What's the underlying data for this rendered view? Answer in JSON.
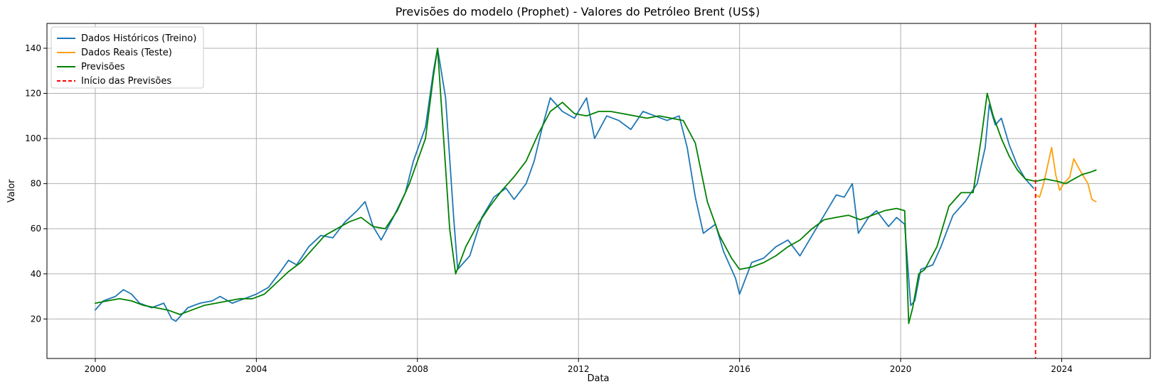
{
  "chart_data": {
    "type": "line",
    "title": "Previsões do modelo (Prophet) - Valores do Petróleo Brent (US$)",
    "xlabel": "Data",
    "ylabel": "Valor",
    "xlim": [
      1998.8,
      2026.2
    ],
    "ylim": [
      2.5,
      151
    ],
    "grid": true,
    "legend_position": "top-left",
    "x_ticks": [
      2000,
      2004,
      2008,
      2012,
      2016,
      2020,
      2024
    ],
    "y_ticks": [
      20,
      40,
      60,
      80,
      100,
      120,
      140
    ],
    "forecast_start": 2023.35,
    "series": [
      {
        "name": "Dados Históricos (Treino)",
        "color": "#1f77b4",
        "x": [
          2000.0,
          2000.2,
          2000.5,
          2000.7,
          2000.9,
          2001.1,
          2001.4,
          2001.7,
          2001.9,
          2002.0,
          2002.3,
          2002.6,
          2002.9,
          2003.1,
          2003.4,
          2003.7,
          2004.0,
          2004.3,
          2004.6,
          2004.8,
          2005.0,
          2005.3,
          2005.6,
          2005.9,
          2006.2,
          2006.5,
          2006.7,
          2006.9,
          2007.1,
          2007.4,
          2007.7,
          2007.9,
          2008.2,
          2008.4,
          2008.5,
          2008.7,
          2008.9,
          2009.0,
          2009.3,
          2009.6,
          2009.9,
          2010.2,
          2010.4,
          2010.7,
          2010.9,
          2011.1,
          2011.3,
          2011.6,
          2011.9,
          2012.2,
          2012.4,
          2012.7,
          2013.0,
          2013.3,
          2013.6,
          2013.9,
          2014.2,
          2014.5,
          2014.7,
          2014.9,
          2015.1,
          2015.4,
          2015.6,
          2015.9,
          2016.0,
          2016.3,
          2016.6,
          2016.9,
          2017.2,
          2017.5,
          2017.8,
          2018.1,
          2018.4,
          2018.6,
          2018.8,
          2018.95,
          2019.2,
          2019.4,
          2019.7,
          2019.9,
          2020.1,
          2020.25,
          2020.35,
          2020.5,
          2020.8,
          2021.0,
          2021.3,
          2021.6,
          2021.9,
          2022.1,
          2022.2,
          2022.35,
          2022.5,
          2022.7,
          2022.9,
          2023.1,
          2023.3
        ],
        "y": [
          24,
          28,
          30,
          33,
          31,
          27,
          25,
          27,
          20,
          19,
          25,
          27,
          28,
          30,
          27,
          29,
          31,
          34,
          41,
          46,
          44,
          52,
          57,
          56,
          63,
          68,
          72,
          61,
          55,
          65,
          76,
          90,
          105,
          130,
          140,
          118,
          65,
          42,
          48,
          65,
          74,
          78,
          73,
          80,
          90,
          105,
          118,
          112,
          109,
          118,
          100,
          110,
          108,
          104,
          112,
          110,
          108,
          110,
          96,
          74,
          58,
          62,
          50,
          38,
          31,
          45,
          47,
          52,
          55,
          48,
          57,
          66,
          75,
          74,
          80,
          58,
          65,
          68,
          61,
          65,
          62,
          26,
          28,
          42,
          44,
          52,
          66,
          72,
          80,
          96,
          115,
          106,
          109,
          97,
          88,
          82,
          78
        ]
      },
      {
        "name": "Dados Reais (Teste)",
        "color": "#ff9f0a",
        "x": [
          2023.35,
          2023.45,
          2023.55,
          2023.65,
          2023.75,
          2023.85,
          2023.95,
          2024.05,
          2024.2,
          2024.3,
          2024.45,
          2024.55,
          2024.65,
          2024.75,
          2024.85
        ],
        "y": [
          75,
          74,
          80,
          88,
          96,
          84,
          77,
          80,
          83,
          91,
          86,
          83,
          80,
          73,
          72
        ]
      },
      {
        "name": "Previsões",
        "color": "#008000",
        "x": [
          2000.0,
          2000.3,
          2000.6,
          2000.9,
          2001.2,
          2001.5,
          2001.8,
          2002.1,
          2002.4,
          2002.7,
          2003.0,
          2003.3,
          2003.6,
          2003.9,
          2004.2,
          2004.5,
          2004.8,
          2005.1,
          2005.4,
          2005.7,
          2006.0,
          2006.3,
          2006.6,
          2006.9,
          2007.2,
          2007.5,
          2007.8,
          2008.0,
          2008.2,
          2008.4,
          2008.5,
          2008.65,
          2008.8,
          2008.95,
          2009.2,
          2009.5,
          2009.8,
          2010.1,
          2010.4,
          2010.7,
          2011.0,
          2011.3,
          2011.6,
          2011.9,
          2012.2,
          2012.5,
          2012.8,
          2013.1,
          2013.4,
          2013.7,
          2014.0,
          2014.3,
          2014.6,
          2014.9,
          2015.2,
          2015.5,
          2015.8,
          2016.0,
          2016.3,
          2016.6,
          2016.9,
          2017.2,
          2017.5,
          2017.8,
          2018.1,
          2018.4,
          2018.7,
          2019.0,
          2019.3,
          2019.6,
          2019.9,
          2020.1,
          2020.2,
          2020.3,
          2020.45,
          2020.6,
          2020.9,
          2021.2,
          2021.5,
          2021.8,
          2022.0,
          2022.15,
          2022.3,
          2022.5,
          2022.7,
          2022.9,
          2023.1,
          2023.35,
          2023.6,
          2023.9,
          2024.1,
          2024.3,
          2024.5,
          2024.7,
          2024.85
        ],
        "y": [
          27,
          28,
          29,
          28,
          26,
          25,
          24,
          22,
          24,
          26,
          27,
          28,
          29,
          29,
          31,
          36,
          41,
          45,
          51,
          57,
          60,
          63,
          65,
          61,
          60,
          68,
          80,
          90,
          100,
          128,
          140,
          100,
          60,
          40,
          52,
          62,
          70,
          77,
          83,
          90,
          102,
          112,
          116,
          111,
          110,
          112,
          112,
          111,
          110,
          109,
          110,
          109,
          108,
          98,
          72,
          57,
          47,
          42,
          43,
          45,
          48,
          52,
          55,
          60,
          64,
          65,
          66,
          64,
          66,
          68,
          69,
          68,
          18,
          25,
          40,
          42,
          52,
          70,
          76,
          76,
          100,
          120,
          110,
          100,
          92,
          86,
          82,
          81,
          82,
          81,
          80,
          82,
          84,
          85,
          86
        ]
      }
    ],
    "annotation_line": {
      "name": "Início das Previsões",
      "color": "#ff0000"
    }
  }
}
